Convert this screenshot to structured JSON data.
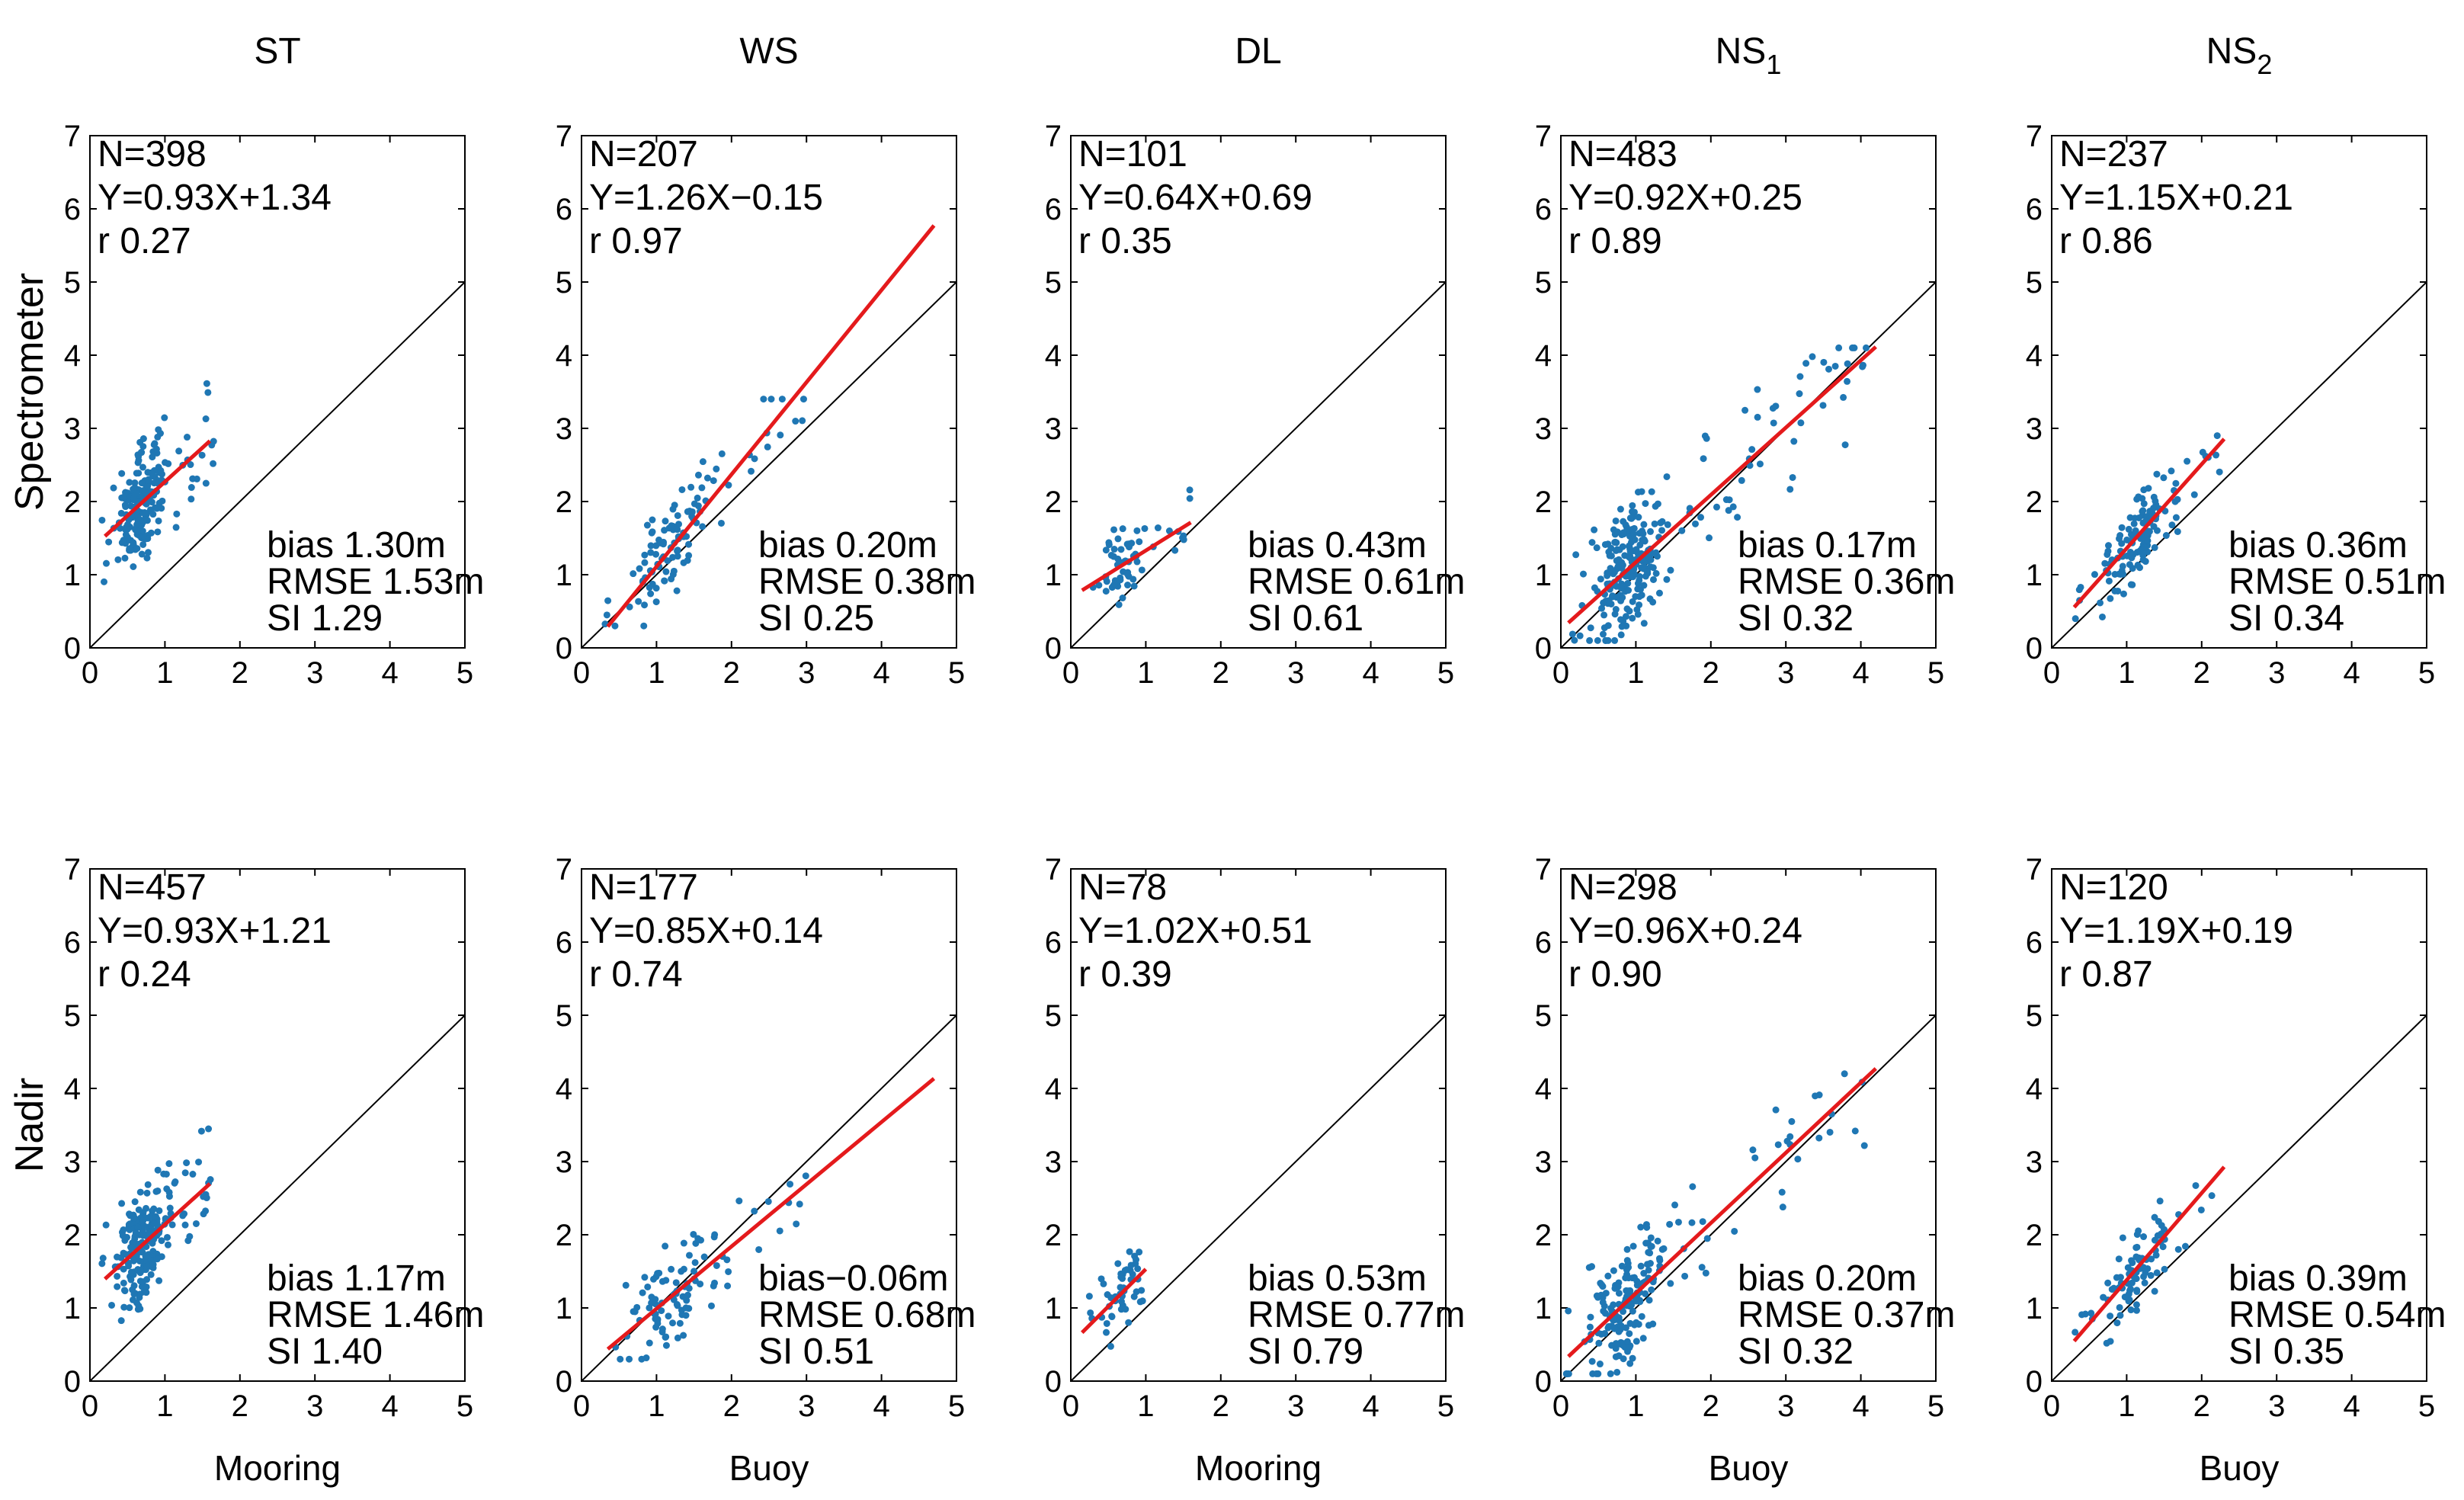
{
  "chart_data": {
    "type": "scatter",
    "row_labels": [
      "Spectrometer",
      "Nadir"
    ],
    "axes": {
      "xlim": [
        0,
        5
      ],
      "ylim": [
        0,
        7
      ],
      "xticks": [
        0,
        1,
        2,
        3,
        4,
        5
      ],
      "yticks": [
        0,
        1,
        2,
        3,
        4,
        5,
        6,
        7
      ]
    },
    "colors": {
      "points": "#1f77b4",
      "fit_line": "#e41a1c",
      "one_to_one": "#000000"
    },
    "panels": [
      {
        "row": 0,
        "col": 0,
        "title": "ST",
        "title_sub": "",
        "xlabel": "",
        "N": "N=398",
        "eq": "Y=0.93X+1.34",
        "r": "r 0.27",
        "bias": "bias 1.30m",
        "rmse": "RMSE 1.53m",
        "si": "SI 1.29",
        "slope": 0.93,
        "intercept": 1.34,
        "fit_x": [
          0.2,
          1.6
        ],
        "cloud": {
          "x": [
            0.15,
            1.65
          ],
          "xc": 0.7,
          "y": [
            0.3,
            3.8
          ],
          "n": 200
        }
      },
      {
        "row": 0,
        "col": 1,
        "title": "WS",
        "title_sub": "",
        "xlabel": "",
        "N": "N=207",
        "eq": "Y=1.26X−0.15",
        "r": "r 0.97",
        "bias": "bias 0.20m",
        "rmse": "RMSE 0.38m",
        "si": "SI 0.25",
        "slope": 1.26,
        "intercept": -0.15,
        "fit_x": [
          0.35,
          4.7
        ],
        "cloud": {
          "x": [
            0.3,
            3.0
          ],
          "xc": 1.2,
          "y": [
            0.3,
            3.4
          ],
          "n": 110
        }
      },
      {
        "row": 0,
        "col": 2,
        "title": "DL",
        "title_sub": "",
        "xlabel": "",
        "N": "N=101",
        "eq": "Y=0.64X+0.69",
        "r": "r 0.35",
        "bias": "bias 0.43m",
        "rmse": "RMSE 0.61m",
        "si": "SI 0.61",
        "slope": 0.64,
        "intercept": 0.69,
        "fit_x": [
          0.15,
          1.6
        ],
        "cloud": {
          "x": [
            0.15,
            1.6
          ],
          "xc": 0.7,
          "y": [
            0.3,
            2.7
          ],
          "n": 60
        }
      },
      {
        "row": 0,
        "col": 3,
        "title": "NS",
        "title_sub": "1",
        "xlabel": "",
        "N": "N=483",
        "eq": "Y=0.92X+0.25",
        "r": "r 0.89",
        "bias": "bias 0.17m",
        "rmse": "RMSE 0.36m",
        "si": "SI 0.32",
        "slope": 0.92,
        "intercept": 0.25,
        "fit_x": [
          0.1,
          4.2
        ],
        "cloud": {
          "x": [
            0.05,
            4.2
          ],
          "xc": 0.9,
          "y": [
            0.1,
            4.1
          ],
          "n": 260
        }
      },
      {
        "row": 0,
        "col": 4,
        "title": "NS",
        "title_sub": "2",
        "xlabel": "",
        "N": "N=237",
        "eq": "Y=1.15X+0.21",
        "r": "r 0.86",
        "bias": "bias 0.36m",
        "rmse": "RMSE 0.51m",
        "si": "SI 0.34",
        "slope": 1.15,
        "intercept": 0.21,
        "fit_x": [
          0.3,
          2.3
        ],
        "cloud": {
          "x": [
            0.3,
            2.3
          ],
          "xc": 1.2,
          "y": [
            0.3,
            2.9
          ],
          "n": 130
        }
      },
      {
        "row": 1,
        "col": 0,
        "title": "",
        "title_sub": "",
        "xlabel": "Mooring",
        "N": "N=457",
        "eq": "Y=0.93X+1.21",
        "r": "r 0.24",
        "bias": "bias 1.17m",
        "rmse": "RMSE 1.46m",
        "si": "SI 1.40",
        "slope": 0.93,
        "intercept": 1.21,
        "fit_x": [
          0.2,
          1.6
        ],
        "cloud": {
          "x": [
            0.15,
            1.65
          ],
          "xc": 0.7,
          "y": [
            0.2,
            3.9
          ],
          "n": 220
        }
      },
      {
        "row": 1,
        "col": 1,
        "title": "",
        "title_sub": "",
        "xlabel": "Buoy",
        "N": "N=177",
        "eq": "Y=0.85X+0.14",
        "r": "r 0.74",
        "bias": "bias−0.06m",
        "rmse": "RMSE 0.68m",
        "si": "SI 0.51",
        "slope": 0.85,
        "intercept": 0.14,
        "fit_x": [
          0.35,
          4.7
        ],
        "cloud": {
          "x": [
            0.3,
            3.0
          ],
          "xc": 1.2,
          "y": [
            0.3,
            3.8
          ],
          "n": 100
        }
      },
      {
        "row": 1,
        "col": 2,
        "title": "",
        "title_sub": "",
        "xlabel": "Mooring",
        "N": "N=78",
        "eq": "Y=1.02X+0.51",
        "r": "r 0.39",
        "bias": "bias 0.53m",
        "rmse": "RMSE 0.77m",
        "si": "SI 0.79",
        "slope": 1.02,
        "intercept": 0.51,
        "fit_x": [
          0.15,
          1.0
        ],
        "cloud": {
          "x": [
            0.15,
            1.0
          ],
          "xc": 0.7,
          "y": [
            0.3,
            3.2
          ],
          "n": 50
        }
      },
      {
        "row": 1,
        "col": 3,
        "title": "",
        "title_sub": "",
        "xlabel": "Buoy",
        "N": "N=298",
        "eq": "Y=0.96X+0.24",
        "r": "r 0.90",
        "bias": "bias 0.20m",
        "rmse": "RMSE 0.37m",
        "si": "SI 0.32",
        "slope": 0.96,
        "intercept": 0.24,
        "fit_x": [
          0.1,
          4.2
        ],
        "cloud": {
          "x": [
            0.05,
            4.2
          ],
          "xc": 0.9,
          "y": [
            0.1,
            4.2
          ],
          "n": 200
        }
      },
      {
        "row": 1,
        "col": 4,
        "title": "",
        "title_sub": "",
        "xlabel": "Buoy",
        "N": "N=120",
        "eq": "Y=1.19X+0.19",
        "r": "r 0.87",
        "bias": "bias 0.39m",
        "rmse": "RMSE 0.54m",
        "si": "SI 0.35",
        "slope": 1.19,
        "intercept": 0.19,
        "fit_x": [
          0.3,
          2.3
        ],
        "cloud": {
          "x": [
            0.3,
            2.3
          ],
          "xc": 1.2,
          "y": [
            0.3,
            3.0
          ],
          "n": 90
        }
      }
    ]
  }
}
